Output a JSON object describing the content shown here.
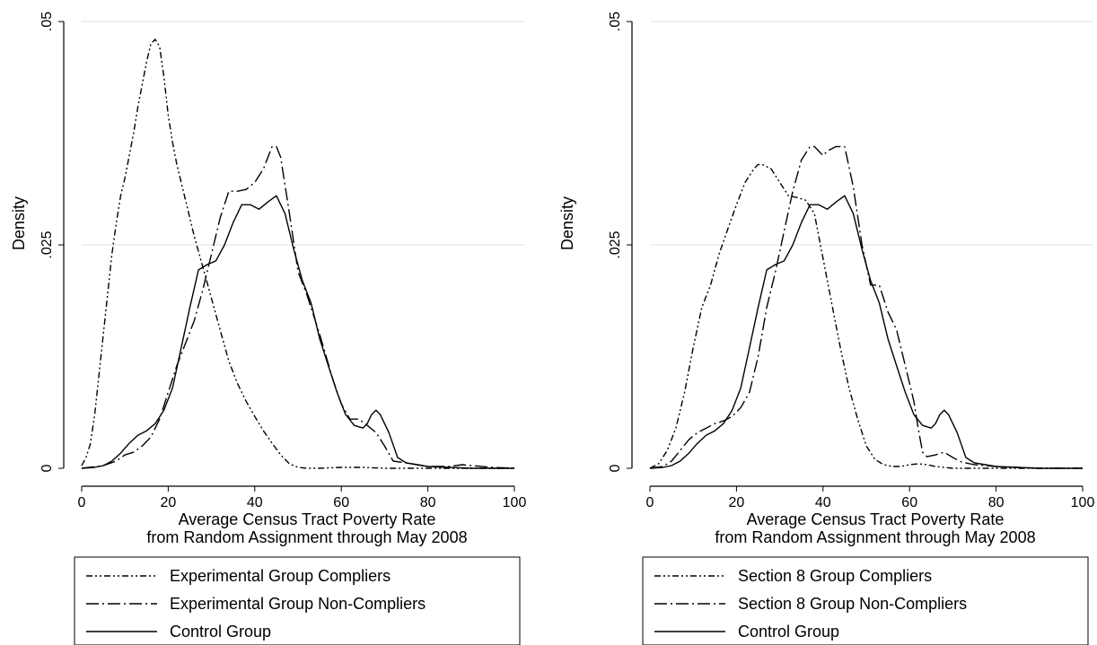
{
  "chart_data": [
    {
      "type": "line",
      "xlabel_line1": "Average Census Tract Poverty Rate",
      "xlabel_line2": "from Random Assignment through May 2008",
      "ylabel": "Density",
      "xlim": [
        0,
        100
      ],
      "ylim": [
        0,
        0.05
      ],
      "xticks": [
        0,
        20,
        40,
        60,
        80,
        100
      ],
      "xtick_labels": [
        "0",
        "20",
        "40",
        "60",
        "80",
        "100"
      ],
      "yticks": [
        0,
        0.025,
        0.05
      ],
      "ytick_labels": [
        "0",
        ".025",
        ".05"
      ],
      "grid": true,
      "legend_position": "bottom",
      "series": [
        {
          "name": "Experimental Group Compliers",
          "dash": "dash-dot-dot",
          "x": [
            0,
            1,
            2,
            3,
            4,
            5,
            6,
            7,
            8,
            9,
            10,
            11,
            12,
            13,
            14,
            15,
            16,
            17,
            18,
            19,
            20,
            21,
            22,
            24,
            26,
            28,
            30,
            32,
            34,
            36,
            38,
            40,
            42,
            44,
            46,
            48,
            50,
            52,
            55,
            60,
            65,
            70,
            80,
            90,
            100
          ],
          "y": [
            0.0003,
            0.0012,
            0.0027,
            0.006,
            0.0105,
            0.015,
            0.0195,
            0.024,
            0.0275,
            0.0305,
            0.0325,
            0.035,
            0.0375,
            0.0405,
            0.043,
            0.0455,
            0.0475,
            0.048,
            0.0472,
            0.0438,
            0.0395,
            0.0365,
            0.034,
            0.03,
            0.026,
            0.0225,
            0.019,
            0.0155,
            0.012,
            0.0095,
            0.0075,
            0.0058,
            0.0042,
            0.0028,
            0.0015,
            0.0005,
            0.0001,
            0.0,
            0.0,
            0.0001,
            0.0001,
            0.0,
            0.0,
            0.0,
            0.0
          ]
        },
        {
          "name": "Experimental Group Non-Compliers",
          "dash": "long-dash-dot",
          "x": [
            0,
            5,
            8,
            10,
            12,
            14,
            16,
            18,
            20,
            22,
            24,
            26,
            28,
            30,
            32,
            34,
            36,
            38,
            40,
            42,
            44,
            45,
            46,
            48,
            50,
            52,
            55,
            58,
            60,
            62,
            64,
            66,
            68,
            70,
            72,
            75,
            80,
            85,
            88,
            90,
            95,
            100
          ],
          "y": [
            0.0,
            0.0003,
            0.0008,
            0.0015,
            0.0018,
            0.0025,
            0.0035,
            0.0055,
            0.0085,
            0.0115,
            0.014,
            0.0165,
            0.02,
            0.024,
            0.028,
            0.031,
            0.031,
            0.0312,
            0.032,
            0.0335,
            0.036,
            0.036,
            0.0348,
            0.0285,
            0.022,
            0.0195,
            0.015,
            0.01,
            0.0072,
            0.0055,
            0.0055,
            0.0048,
            0.004,
            0.0025,
            0.0008,
            0.0006,
            0.0002,
            0.0002,
            0.0004,
            0.0003,
            0.0001,
            0.0
          ]
        },
        {
          "name": "Control Group",
          "dash": "solid",
          "x": [
            0,
            3,
            5,
            7,
            9,
            11,
            13,
            15,
            17,
            19,
            21,
            23,
            25,
            27,
            29,
            31,
            33,
            35,
            37,
            39,
            41,
            43,
            45,
            47,
            49,
            51,
            53,
            55,
            57,
            59,
            61,
            63,
            65,
            66,
            67,
            68,
            69,
            71,
            73,
            75,
            80,
            85,
            90,
            95,
            100
          ],
          "y": [
            0.0,
            0.0001,
            0.0003,
            0.0008,
            0.0017,
            0.0028,
            0.0037,
            0.0042,
            0.005,
            0.0065,
            0.009,
            0.0135,
            0.018,
            0.0222,
            0.0228,
            0.0232,
            0.025,
            0.0275,
            0.0295,
            0.0295,
            0.029,
            0.0298,
            0.0305,
            0.0285,
            0.0245,
            0.021,
            0.0185,
            0.0145,
            0.0115,
            0.0085,
            0.006,
            0.0048,
            0.0045,
            0.005,
            0.006,
            0.0065,
            0.006,
            0.004,
            0.0012,
            0.0006,
            0.0002,
            0.0001,
            0.0,
            0.0,
            0.0
          ]
        }
      ]
    },
    {
      "type": "line",
      "xlabel_line1": "Average Census Tract Poverty Rate",
      "xlabel_line2": "from Random Assignment through May 2008",
      "ylabel": "Density",
      "xlim": [
        0,
        100
      ],
      "ylim": [
        0,
        0.05
      ],
      "xticks": [
        0,
        20,
        40,
        60,
        80,
        100
      ],
      "xtick_labels": [
        "0",
        "20",
        "40",
        "60",
        "80",
        "100"
      ],
      "yticks": [
        0,
        0.025,
        0.05
      ],
      "ytick_labels": [
        "0",
        ".025",
        ".05"
      ],
      "grid": true,
      "legend_position": "bottom",
      "series": [
        {
          "name": "Section 8 Group Compliers",
          "dash": "dash-dot-dot",
          "x": [
            0,
            2,
            4,
            6,
            8,
            10,
            12,
            14,
            16,
            18,
            20,
            22,
            24,
            25,
            26,
            28,
            30,
            32,
            34,
            36,
            38,
            40,
            42,
            44,
            46,
            48,
            50,
            52,
            54,
            56,
            58,
            60,
            62,
            64,
            66,
            68,
            70,
            75,
            80,
            90,
            100
          ],
          "y": [
            0.0,
            0.0005,
            0.002,
            0.0045,
            0.0085,
            0.0135,
            0.018,
            0.0205,
            0.024,
            0.0268,
            0.0295,
            0.032,
            0.0335,
            0.034,
            0.034,
            0.0335,
            0.032,
            0.0305,
            0.0303,
            0.03,
            0.0285,
            0.0235,
            0.0185,
            0.0135,
            0.009,
            0.0055,
            0.0025,
            0.001,
            0.0004,
            0.0002,
            0.0002,
            0.0004,
            0.0005,
            0.0004,
            0.0002,
            0.0001,
            0.0,
            0.0,
            0.0,
            0.0,
            0.0
          ]
        },
        {
          "name": "Section 8 Group Non-Compliers",
          "dash": "long-dash-dot",
          "x": [
            0,
            3,
            5,
            7,
            9,
            11,
            13,
            15,
            17,
            19,
            21,
            23,
            25,
            27,
            29,
            31,
            33,
            35,
            37,
            38,
            39,
            40,
            41,
            43,
            44,
            45,
            47,
            49,
            51,
            53,
            55,
            57,
            59,
            61,
            62,
            63,
            64,
            66,
            68,
            70,
            72,
            75,
            80,
            85,
            90,
            100
          ],
          "y": [
            0.0,
            0.0002,
            0.0008,
            0.002,
            0.0032,
            0.004,
            0.0045,
            0.005,
            0.0053,
            0.0058,
            0.0068,
            0.0085,
            0.0125,
            0.018,
            0.022,
            0.0265,
            0.031,
            0.0345,
            0.036,
            0.036,
            0.0355,
            0.035,
            0.0355,
            0.036,
            0.036,
            0.036,
            0.0315,
            0.025,
            0.0205,
            0.0205,
            0.0175,
            0.0155,
            0.0115,
            0.0075,
            0.0045,
            0.0018,
            0.0013,
            0.0015,
            0.0018,
            0.0012,
            0.0007,
            0.0004,
            0.0002,
            0.0001,
            0.0,
            0.0
          ]
        },
        {
          "name": "Control Group",
          "dash": "solid",
          "x": [
            0,
            3,
            5,
            7,
            9,
            11,
            13,
            15,
            17,
            19,
            21,
            23,
            25,
            27,
            29,
            31,
            33,
            35,
            37,
            39,
            41,
            43,
            45,
            47,
            49,
            51,
            53,
            55,
            57,
            59,
            61,
            63,
            65,
            66,
            67,
            68,
            69,
            71,
            73,
            75,
            80,
            85,
            90,
            95,
            100
          ],
          "y": [
            0.0,
            0.0001,
            0.0003,
            0.0008,
            0.0017,
            0.0028,
            0.0037,
            0.0042,
            0.005,
            0.0065,
            0.009,
            0.0135,
            0.018,
            0.0222,
            0.0228,
            0.0232,
            0.025,
            0.0275,
            0.0295,
            0.0295,
            0.029,
            0.0298,
            0.0305,
            0.0285,
            0.0245,
            0.021,
            0.0185,
            0.0145,
            0.0115,
            0.0085,
            0.006,
            0.0048,
            0.0045,
            0.005,
            0.006,
            0.0065,
            0.006,
            0.004,
            0.0012,
            0.0006,
            0.0002,
            0.0001,
            0.0,
            0.0,
            0.0
          ]
        }
      ]
    }
  ]
}
